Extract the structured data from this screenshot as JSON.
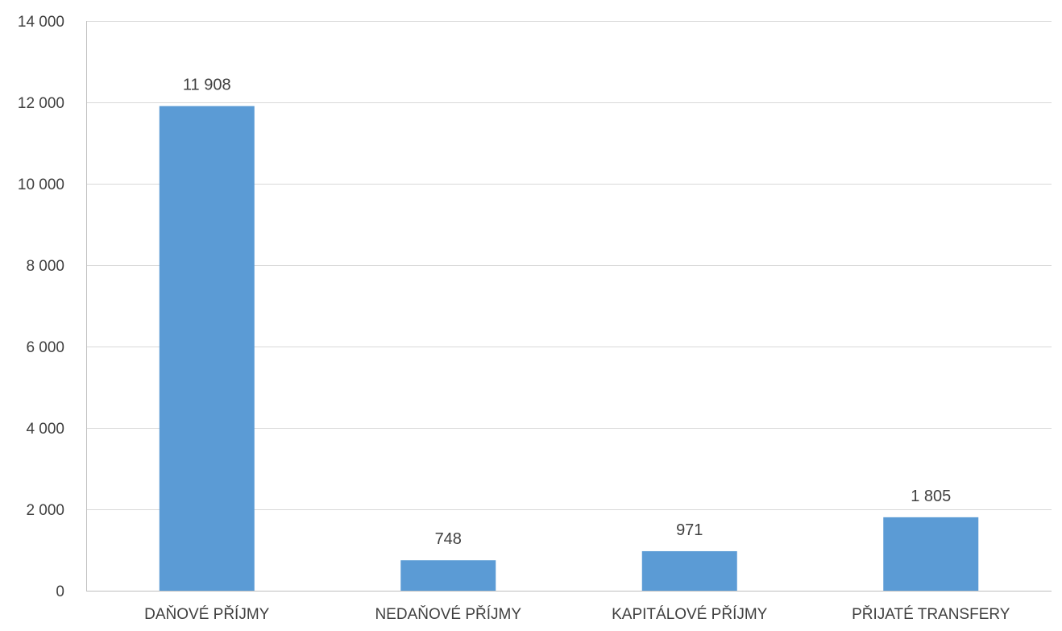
{
  "chart_data": {
    "type": "bar",
    "categories": [
      "DAŇOVÉ PŘÍJMY",
      "NEDAŇOVÉ PŘÍJMY",
      "KAPITÁLOVÉ PŘÍJMY",
      "PŘIJATÉ TRANSFERY"
    ],
    "values": [
      11908,
      748,
      971,
      1805
    ],
    "value_labels": [
      "11 908",
      "748",
      "971",
      "1 805"
    ],
    "ylim": [
      0,
      14000
    ],
    "yticks": [
      0,
      2000,
      4000,
      6000,
      8000,
      10000,
      12000,
      14000
    ],
    "ytick_labels": [
      "0",
      "2 000",
      "4 000",
      "6 000",
      "8 000",
      "10 000",
      "12 000",
      "14 000"
    ],
    "title": "",
    "xlabel": "",
    "ylabel": "",
    "grid": true,
    "legend": "none",
    "bar_color": "#5B9BD5",
    "grid_color": "#D9D9D9",
    "axis_color": "#BFBFBF",
    "text_color": "#404040"
  }
}
